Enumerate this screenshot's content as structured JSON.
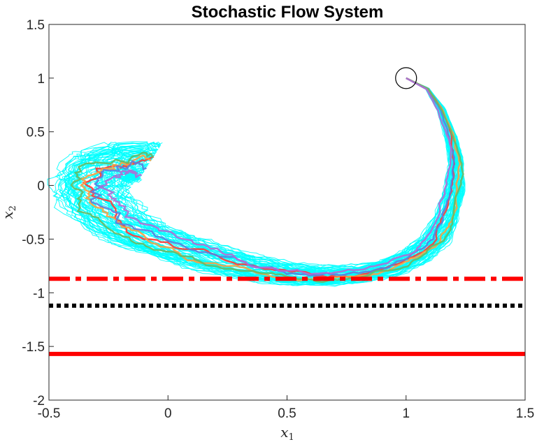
{
  "chart_data": {
    "type": "line",
    "title": "Stochastic Flow System",
    "xlabel_base": "x",
    "xlabel_sub": "1",
    "ylabel_base": "x",
    "ylabel_sub": "2",
    "xlim": [
      -0.5,
      1.5
    ],
    "ylim": [
      -2,
      1.5
    ],
    "xticks": [
      -0.5,
      0,
      0.5,
      1,
      1.5
    ],
    "yticks": [
      1.5,
      1,
      0.5,
      0,
      -0.5,
      -1,
      -1.5,
      -2
    ],
    "xtick_labels": [
      "-0.5",
      "0",
      "0.5",
      "1",
      "1.5"
    ],
    "ytick_labels": [
      "1.5",
      "1",
      "0.5",
      "0",
      "-0.5",
      "-1",
      "-1.5",
      "-2"
    ],
    "start_point": [
      1.0,
      1.0
    ],
    "ensemble_color": "#00ffff",
    "mean_path": [
      [
        1.0,
        1.0
      ],
      [
        1.09,
        0.9
      ],
      [
        1.15,
        0.7
      ],
      [
        1.19,
        0.45
      ],
      [
        1.21,
        0.2
      ],
      [
        1.2,
        -0.05
      ],
      [
        1.17,
        -0.3
      ],
      [
        1.12,
        -0.5
      ],
      [
        1.04,
        -0.65
      ],
      [
        0.93,
        -0.76
      ],
      [
        0.8,
        -0.82
      ],
      [
        0.65,
        -0.84
      ],
      [
        0.5,
        -0.82
      ],
      [
        0.35,
        -0.76
      ],
      [
        0.2,
        -0.68
      ],
      [
        0.05,
        -0.58
      ],
      [
        -0.1,
        -0.46
      ],
      [
        -0.22,
        -0.32
      ],
      [
        -0.3,
        -0.15
      ],
      [
        -0.32,
        0.0
      ],
      [
        -0.29,
        0.13
      ],
      [
        -0.22,
        0.2
      ],
      [
        -0.15,
        0.22
      ],
      [
        -0.08,
        0.2
      ]
    ],
    "series": [
      {
        "color": "#ff3b3b",
        "offset": 0.0
      },
      {
        "color": "#ffa040",
        "offset": 0.06
      },
      {
        "color": "#5b7fe0",
        "offset": -0.05
      },
      {
        "color": "#66bb66",
        "offset": 0.1
      },
      {
        "color": "#b36bd6",
        "offset": -0.09
      }
    ],
    "hlines": [
      {
        "y": -0.87,
        "color": "#ff0000",
        "style": "dashdot"
      },
      {
        "y": -1.12,
        "color": "#000000",
        "style": "dotted"
      },
      {
        "y": -1.57,
        "color": "#ff0000",
        "style": "solid"
      }
    ]
  }
}
